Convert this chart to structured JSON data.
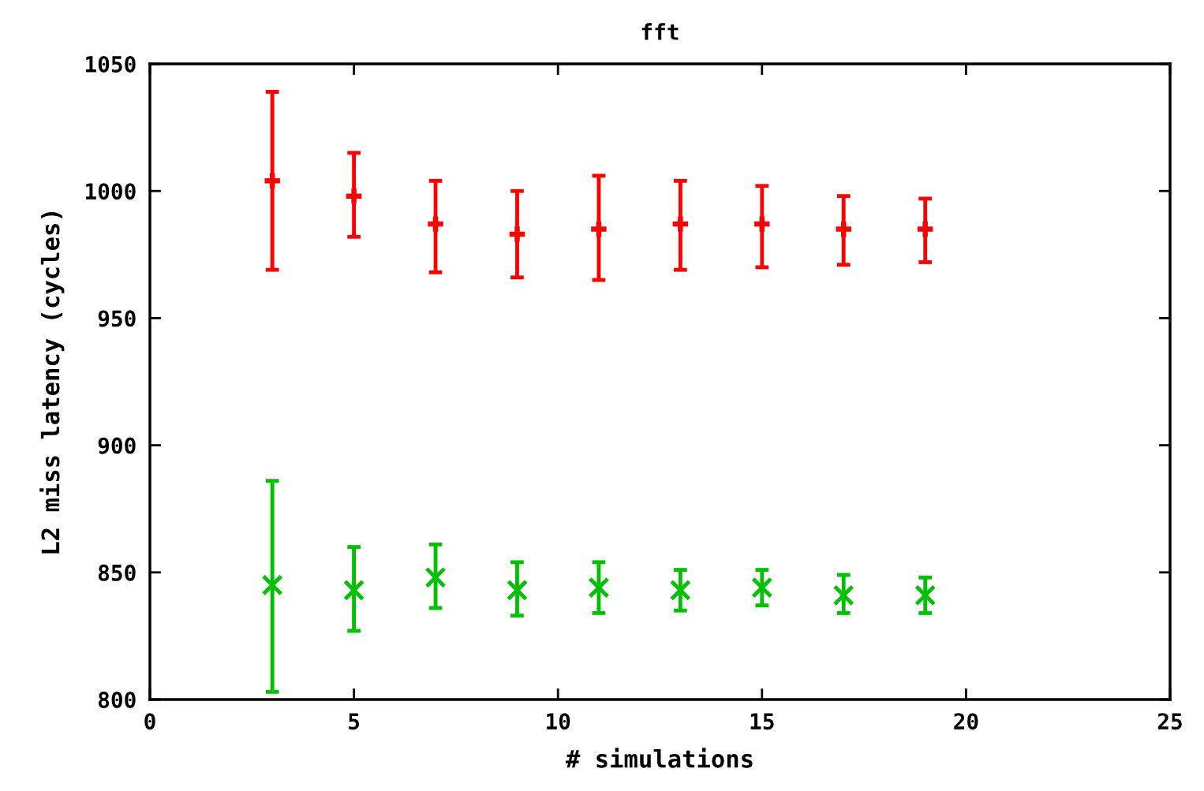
{
  "chart_data": {
    "type": "scatter",
    "title": "fft",
    "xlabel": "# simulations",
    "ylabel": "L2 miss latency (cycles)",
    "xlim": [
      0,
      25
    ],
    "xticks": [
      0,
      5,
      10,
      15,
      20,
      25
    ],
    "ylim": [
      800,
      1050
    ],
    "yticks": [
      800,
      850,
      900,
      950,
      1000,
      1050
    ],
    "grid": false,
    "legend": false,
    "series": [
      {
        "color": "#ff0000",
        "marker": "cross",
        "x": [
          3,
          5,
          7,
          9,
          11,
          13,
          15,
          17,
          19
        ],
        "values": [
          1004,
          998,
          987,
          983,
          985,
          987,
          987,
          985,
          985
        ],
        "errors": [
          [
            969,
            1039
          ],
          [
            982,
            1015
          ],
          [
            968,
            1004
          ],
          [
            966,
            1000
          ],
          [
            965,
            1006
          ],
          [
            969,
            1004
          ],
          [
            970,
            1002
          ],
          [
            971,
            998
          ],
          [
            972,
            997
          ]
        ]
      },
      {
        "color": "#00c000",
        "marker": "x",
        "x": [
          3,
          5,
          7,
          9,
          11,
          13,
          15,
          17,
          19
        ],
        "values": [
          845,
          843,
          848,
          843,
          844,
          843,
          844,
          841,
          841
        ],
        "errors": [
          [
            803,
            886
          ],
          [
            827,
            860
          ],
          [
            836,
            861
          ],
          [
            833,
            854
          ],
          [
            834,
            854
          ],
          [
            835,
            851
          ],
          [
            837,
            851
          ],
          [
            834,
            849
          ],
          [
            834,
            848
          ]
        ]
      }
    ]
  }
}
